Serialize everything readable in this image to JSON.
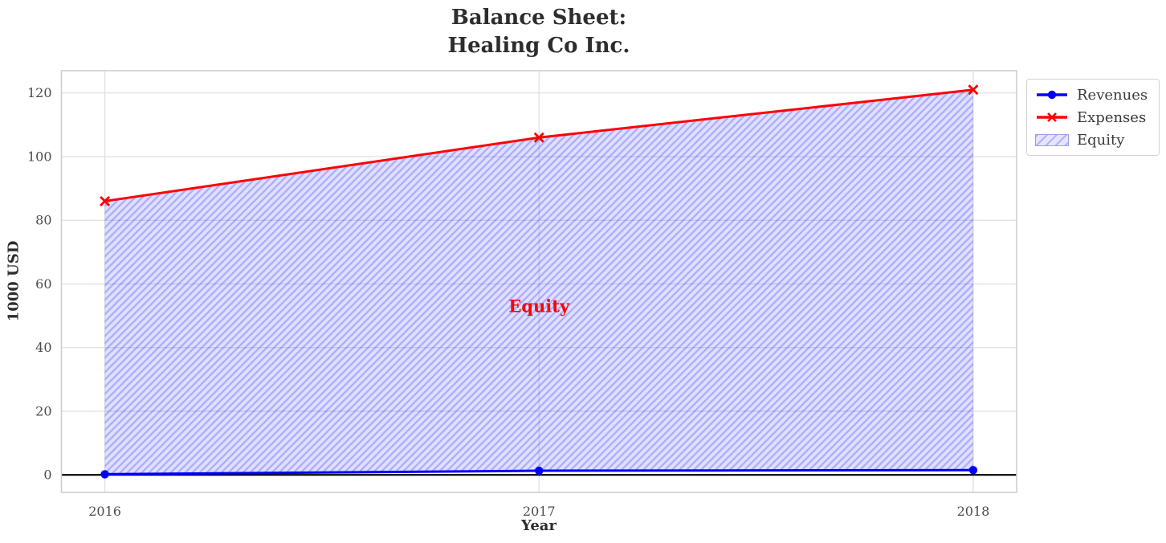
{
  "chart_data": {
    "type": "line",
    "title": "Balance Sheet: Healing Co Inc.",
    "title_lines": [
      "Balance Sheet:",
      "Healing Co Inc."
    ],
    "xlabel": "Year",
    "ylabel": "1000 USD",
    "x": [
      2016,
      2017,
      2018
    ],
    "xticks": [
      "2016",
      "2017",
      "2018"
    ],
    "yticks": [
      0,
      20,
      40,
      60,
      80,
      100,
      120
    ],
    "xlim": [
      2015.9,
      2018.1
    ],
    "ylim": [
      -5.5,
      127
    ],
    "grid": true,
    "legend_position": "upper right, outside axes",
    "series": [
      {
        "name": "Revenues",
        "color": "#0000ff",
        "marker": "circle",
        "values": [
          0.2,
          1.3,
          1.5
        ]
      },
      {
        "name": "Expenses",
        "color": "#ff0000",
        "marker": "x",
        "values": [
          86,
          106,
          121
        ]
      }
    ],
    "fill_between": {
      "label": "Equity",
      "between": [
        "Revenues",
        "Expenses"
      ],
      "hatch": "/",
      "facecolor": "rgba(0,0,255,0.12)",
      "hatchcolor": "rgba(0,0,255,0.22)"
    },
    "annotation": {
      "text": "Equity",
      "x": 2017,
      "y": 53,
      "color": "#ff0000"
    },
    "zero_line_color": "#000000"
  }
}
